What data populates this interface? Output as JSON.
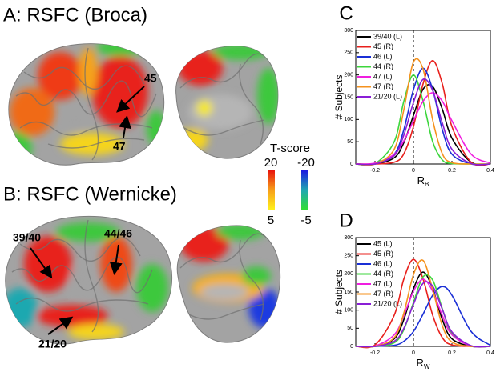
{
  "panels": {
    "a_title": "A: RSFC (Broca)",
    "a_label_45": "45",
    "a_label_47": "47",
    "b_title": "B: RSFC (Wernicke)",
    "b_label_3940": "39/40",
    "b_label_4446": "44/46",
    "b_label_2120": "21/20",
    "colorbar_title": "T-score",
    "pos_max": "20",
    "pos_min": "5",
    "neg_max": "-20",
    "neg_min": "-5"
  },
  "chart_data": [
    {
      "type": "line",
      "panel_label": "C",
      "y_label": "# Subjects",
      "x_label": "R",
      "x_label_sub": "B",
      "x": [
        -0.3,
        -0.2,
        -0.1,
        -0.05,
        0,
        0.05,
        0.1,
        0.15,
        0.2,
        0.3,
        0.4
      ],
      "xlim": [
        -0.3,
        0.4
      ],
      "xticks": [
        -0.2,
        0,
        0.2,
        0.4
      ],
      "ylim": [
        0,
        300
      ],
      "yticks": [
        0,
        50,
        100,
        150,
        200,
        250,
        300
      ],
      "vline": 0,
      "legend": "upper left",
      "series": [
        {
          "name": "39/40 (L)",
          "color": "#000000",
          "values": [
            0,
            0,
            14,
            48,
            109,
            168,
            174,
            123,
            58,
            4,
            0
          ]
        },
        {
          "name": "45 (R)",
          "color": "#e8201c",
          "values": [
            0,
            0,
            4,
            23,
            84,
            180,
            232,
            180,
            84,
            4,
            0
          ]
        },
        {
          "name": "46 (L)",
          "color": "#1a2fd6",
          "values": [
            0,
            0,
            22,
            77,
            167,
            215,
            167,
            77,
            22,
            0,
            0
          ]
        },
        {
          "name": "44 (R)",
          "color": "#3cd63c",
          "values": [
            0,
            1,
            50,
            141,
            200,
            141,
            50,
            9,
            1,
            0,
            0
          ]
        },
        {
          "name": "47 (L)",
          "color": "#f01ee0",
          "values": [
            0,
            2,
            22,
            52,
            97,
            141,
            160,
            141,
            97,
            22,
            2
          ]
        },
        {
          "name": "47 (R)",
          "color": "#f5921e",
          "values": [
            0,
            0,
            33,
            122,
            229,
            213,
            99,
            23,
            3,
            0,
            0
          ]
        },
        {
          "name": "21/20 (L)",
          "color": "#8a1ed6",
          "values": [
            0,
            0,
            19,
            65,
            138,
            190,
            165,
            92,
            33,
            1,
            0
          ]
        }
      ]
    },
    {
      "type": "line",
      "panel_label": "D",
      "y_label": "# Subjects",
      "x_label": "R",
      "x_label_sub": "W",
      "x": [
        -0.3,
        -0.2,
        -0.1,
        -0.05,
        0,
        0.05,
        0.1,
        0.15,
        0.2,
        0.3,
        0.4
      ],
      "xlim": [
        -0.3,
        0.4
      ],
      "xticks": [
        -0.2,
        0,
        0.2,
        0.4
      ],
      "ylim": [
        0,
        300
      ],
      "yticks": [
        0,
        50,
        100,
        150,
        200,
        250,
        300
      ],
      "vline": 0,
      "legend": "upper left",
      "series": [
        {
          "name": "45 (L)",
          "color": "#000000",
          "values": [
            0,
            0,
            21,
            74,
            159,
            205,
            159,
            74,
            21,
            0,
            0
          ]
        },
        {
          "name": "45 (R)",
          "color": "#e8201c",
          "values": [
            0,
            4,
            86,
            186,
            240,
            186,
            86,
            24,
            4,
            0,
            0
          ]
        },
        {
          "name": "46 (L)",
          "color": "#1a2fd6",
          "values": [
            0,
            0,
            3,
            14,
            41,
            89,
            141,
            165,
            141,
            41,
            3
          ]
        },
        {
          "name": "44 (R)",
          "color": "#3cd63c",
          "values": [
            0,
            0,
            10,
            46,
            121,
            192,
            183,
            104,
            36,
            1,
            0
          ]
        },
        {
          "name": "47 (L)",
          "color": "#f01ee0",
          "values": [
            0,
            1,
            32,
            85,
            152,
            185,
            152,
            85,
            32,
            1,
            0
          ]
        },
        {
          "name": "47 (R)",
          "color": "#f5921e",
          "values": [
            0,
            0,
            24,
            92,
            198,
            237,
            157,
            57,
            12,
            0,
            0
          ]
        },
        {
          "name": "21/20 (L)",
          "color": "#8a1ed6",
          "values": [
            0,
            0,
            14,
            50,
            116,
            174,
            166,
            102,
            40,
            2,
            0
          ]
        }
      ]
    }
  ]
}
